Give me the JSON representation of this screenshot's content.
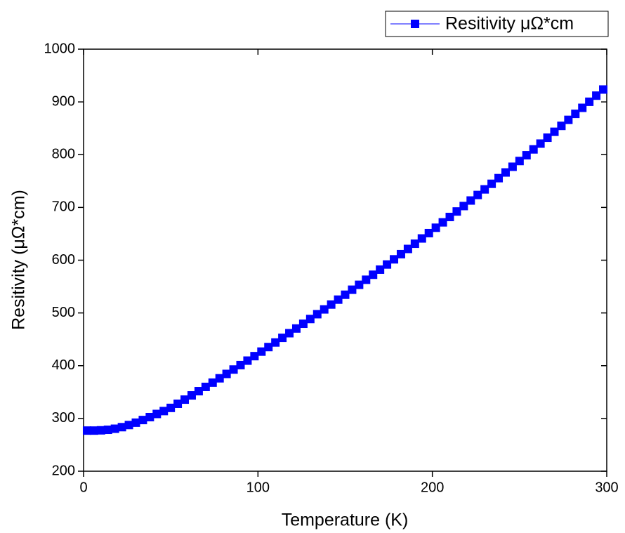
{
  "chart_data": {
    "type": "scatter",
    "x_label": "Temperature (K)",
    "y_label": "Resitivity (μΩ*cm)",
    "xlim": [
      0,
      300
    ],
    "xticks": [
      0,
      100,
      200,
      300
    ],
    "ylim": [
      200,
      1000
    ],
    "yticks": [
      200,
      300,
      400,
      500,
      600,
      700,
      800,
      900,
      1000
    ],
    "grid": false,
    "legend": "top-right",
    "series": [
      {
        "name": "Resitivity μΩ*cm",
        "color": "#0000ff",
        "x": [
          2,
          6,
          10,
          14,
          18,
          22,
          26,
          30,
          34,
          38,
          42,
          46,
          50,
          54,
          58,
          62,
          66,
          70,
          74,
          78,
          82,
          86,
          90,
          94,
          98,
          102,
          106,
          110,
          114,
          118,
          122,
          126,
          130,
          134,
          138,
          142,
          146,
          150,
          154,
          158,
          162,
          166,
          170,
          174,
          178,
          182,
          186,
          190,
          194,
          198,
          202,
          206,
          210,
          214,
          218,
          222,
          226,
          230,
          234,
          238,
          242,
          246,
          250,
          254,
          258,
          262,
          266,
          270,
          274,
          278,
          282,
          286,
          290,
          294,
          298
        ],
        "values": [
          277,
          277,
          277.5,
          278.5,
          280.5,
          283.5,
          287.5,
          292,
          297,
          302.5,
          308.5,
          314,
          320,
          327.8,
          335.7,
          343.7,
          351.7,
          359.8,
          367.9,
          376.1,
          384.4,
          392.7,
          401.1,
          409.6,
          418.1,
          426.7,
          435.3,
          444,
          452.8,
          461.6,
          470.5,
          479.5,
          488.5,
          497.6,
          506.7,
          515.9,
          525.2,
          534.5,
          544,
          553.3,
          562.9,
          572.4,
          582.1,
          591.8,
          601.6,
          611.4,
          621.3,
          631.2,
          641.2,
          651.3,
          661.5,
          671.7,
          681.9,
          692.3,
          702.6,
          713.1,
          723.6,
          734.2,
          744.8,
          755.5,
          766.3,
          777.1,
          788,
          798.9,
          810,
          821,
          832.2,
          843.4,
          854.6,
          866,
          877.4,
          888.8,
          900.3,
          911.9,
          923.5
        ]
      }
    ]
  }
}
